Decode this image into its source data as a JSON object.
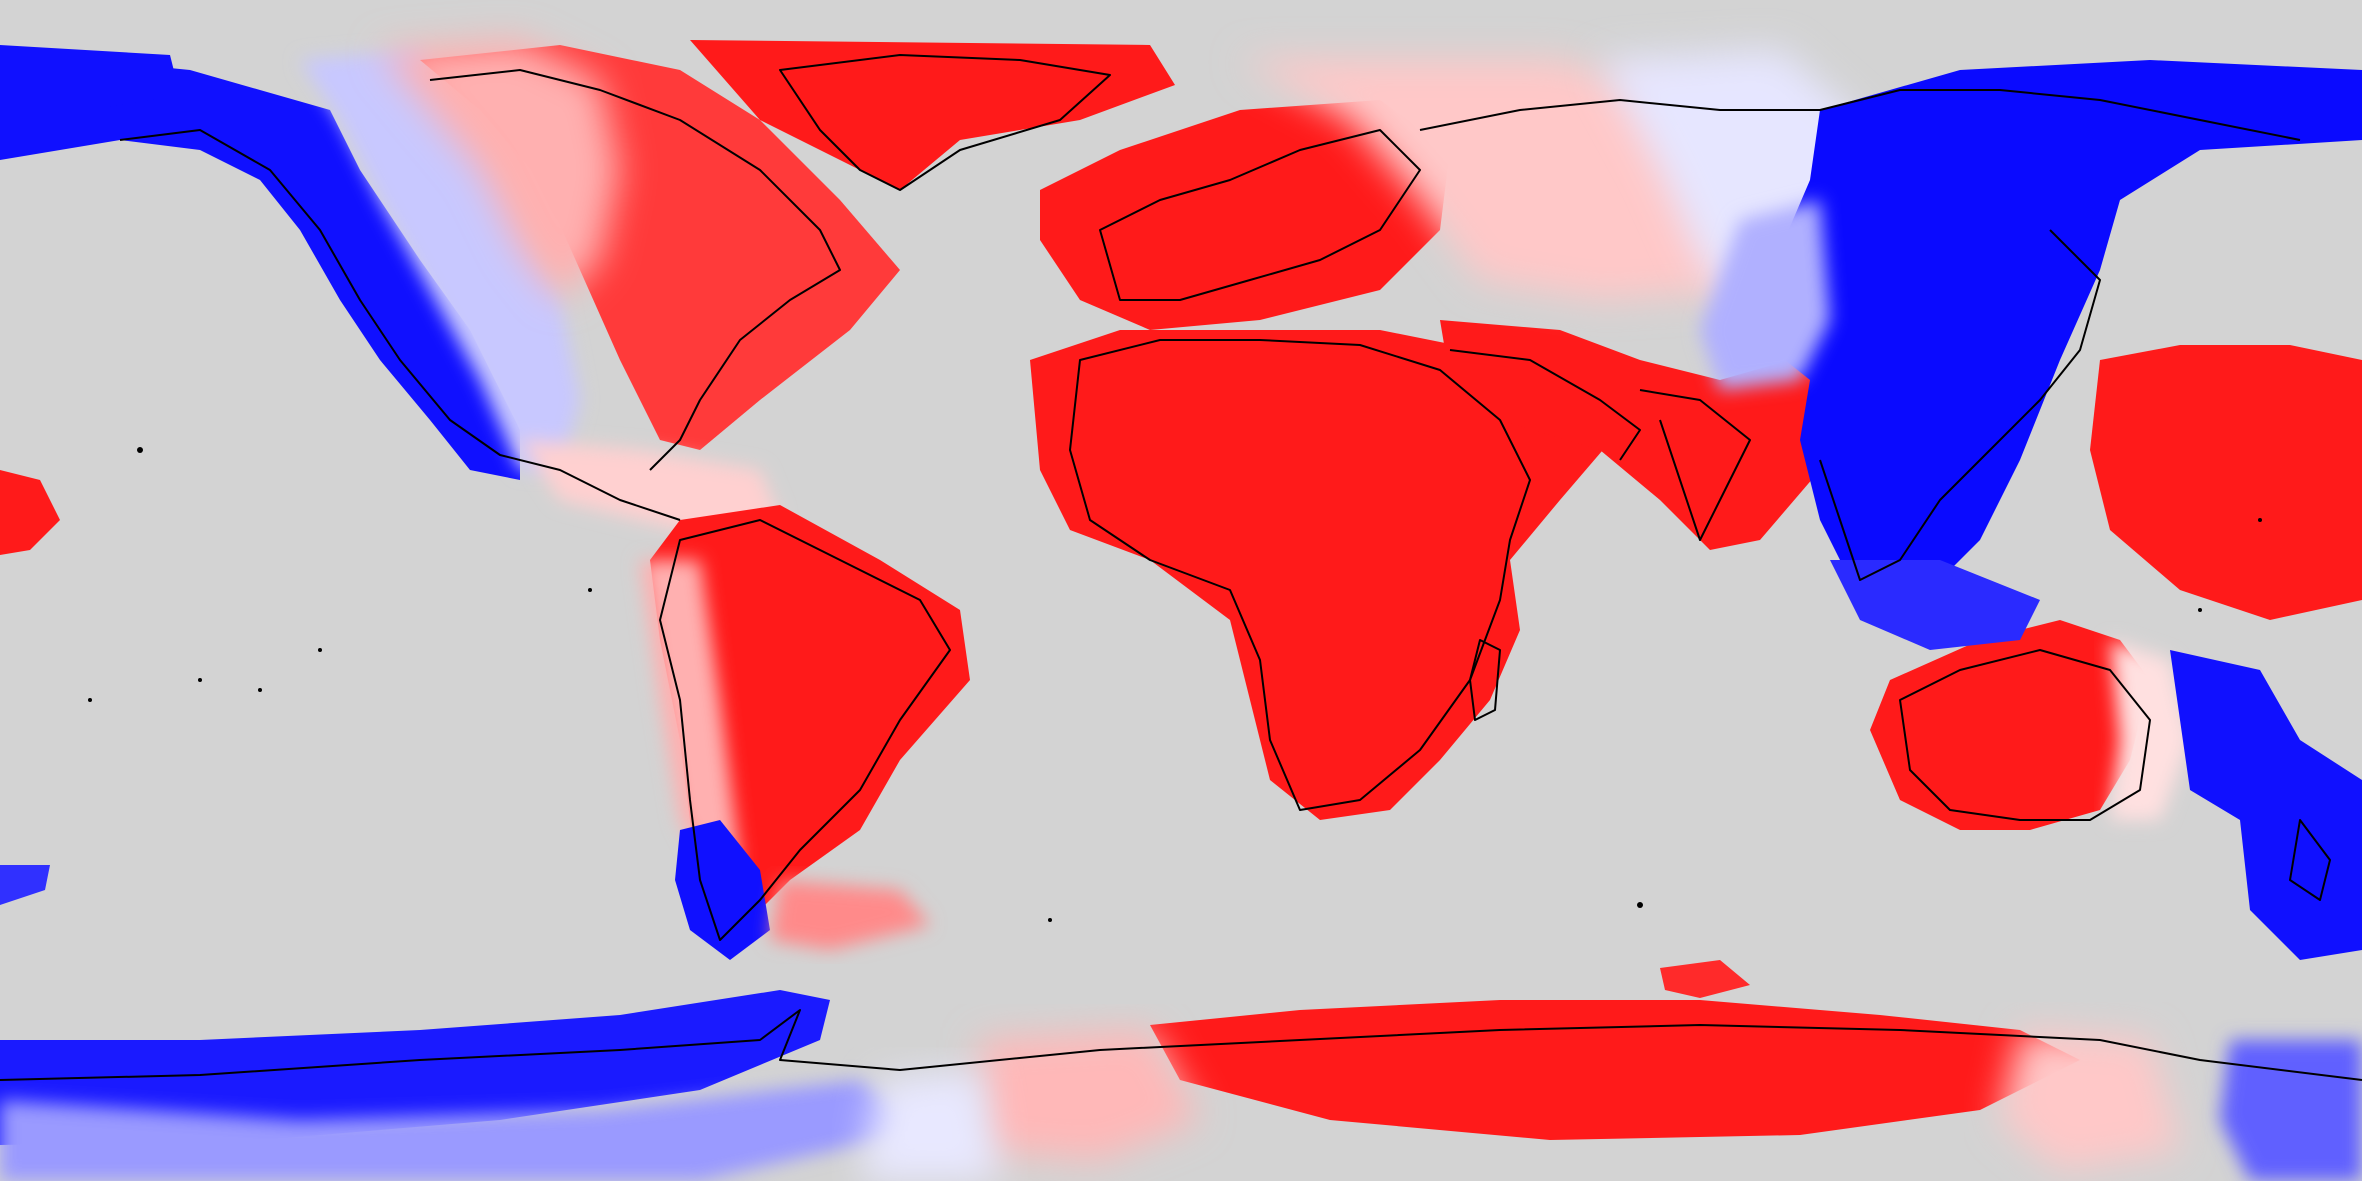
{
  "map": {
    "type": "global-diverging-field",
    "projection": "equirectangular",
    "extent": {
      "lon": [
        -180,
        180
      ],
      "lat": [
        -90,
        90
      ]
    },
    "colors": {
      "background": "#d3d3d3",
      "ocean": "#d3d3d3",
      "coastline": "#000000",
      "scale": [
        "#0000ff",
        "#3a3aff",
        "#7878ff",
        "#a8a8ff",
        "#d6d6ff",
        "#ebebff",
        "#ffffff",
        "#ffe4e4",
        "#ffc4c4",
        "#ff9a9a",
        "#ff6a6a",
        "#ff3b3b",
        "#ff1a1a"
      ]
    },
    "legend": false,
    "labels": []
  }
}
